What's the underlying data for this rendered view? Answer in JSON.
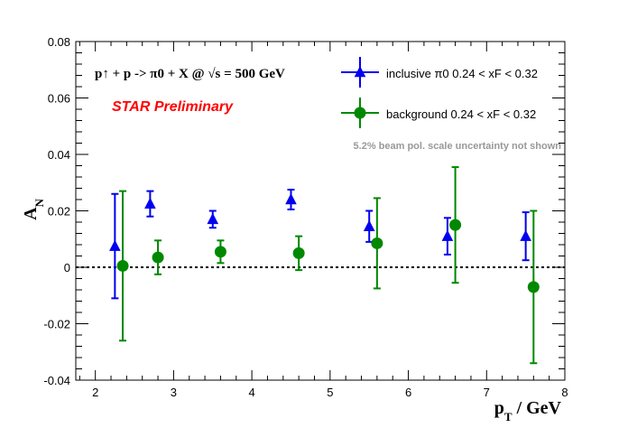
{
  "chart_data": {
    "type": "scatter",
    "title": "",
    "xlabel": "p_T / GeV",
    "ylabel": "A_N",
    "xlim": [
      1.75,
      8.0
    ],
    "ylim": [
      -0.04,
      0.08
    ],
    "x_ticks": [
      2,
      3,
      4,
      5,
      6,
      7,
      8
    ],
    "y_ticks": [
      -0.04,
      -0.02,
      0,
      0.02,
      0.04,
      0.06,
      0.08
    ],
    "y_tick_labels": [
      "-0.04",
      "-0.02",
      "0",
      "0.02",
      "0.04",
      "0.06",
      "0.08"
    ],
    "zero_line": "dotted",
    "legend_position": "top-right",
    "series": [
      {
        "name": "inclusive π0 0.24 < xF < 0.32",
        "marker": "triangle",
        "color": "#0000ee",
        "x": [
          2.25,
          2.7,
          3.5,
          4.5,
          5.5,
          6.5,
          7.5
        ],
        "y": [
          0.0075,
          0.0225,
          0.017,
          0.024,
          0.0145,
          0.011,
          0.011
        ],
        "yerr": [
          0.0185,
          0.0045,
          0.003,
          0.0035,
          0.0055,
          0.0065,
          0.0085
        ]
      },
      {
        "name": "background 0.24 < xF < 0.32",
        "marker": "circle",
        "color": "#008800",
        "x": [
          2.35,
          2.8,
          3.6,
          4.6,
          5.6,
          6.6,
          7.6
        ],
        "y": [
          0.0005,
          0.0035,
          0.0055,
          0.005,
          0.0085,
          0.015,
          -0.007
        ],
        "yerr": [
          0.0265,
          0.006,
          0.004,
          0.006,
          0.016,
          0.0205,
          0.027
        ]
      }
    ]
  },
  "annotations": {
    "reaction": "p↑ + p ->  π0 + X @  √s = 500 GeV",
    "preliminary": "STAR Preliminary",
    "preliminary_color": "#ff0000",
    "note": "5.2% beam pol. scale uncertainty not shown",
    "note_color": "#999999"
  }
}
